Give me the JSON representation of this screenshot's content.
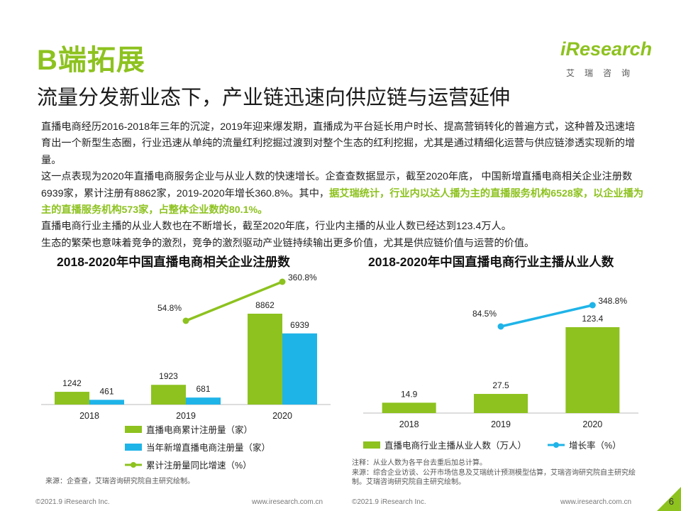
{
  "title": "B端拓展",
  "subtitle": "流量分发新业态下，产业链迅速向供应链与运营延伸",
  "logo": {
    "name": "iResearch",
    "sub": "艾瑞咨询"
  },
  "paragraphs": [
    {
      "text": "直播电商经历2016-2018年三年的沉淀，2019年迎来爆发期，直播成为平台延长用户时长、提高营销转化的普遍方式，这种普及迅速培育出一个新型生态圈，行业迅速从单纯的流量红利挖掘过渡到对整个生态的红利挖掘，尤其是通过精细化运营与供应链渗透实现新的增量。"
    },
    {
      "text": "这一点表现为2020年直播电商服务企业与从业人数的快速增长。企查查数据显示，截至2020年底， 中国新增直播电商相关企业注册数6939家，累计注册有8862家，2019-2020年增长360.8%。其中，",
      "highlight": "据艾瑞统计，行业内以达人播为主的直播服务机构6528家，以企业播为主的直播服务机构573家，占整体企业数的80.1%。"
    },
    {
      "text": "直播电商行业主播的从业人数也在不断增长，截至2020年底，行业内主播的从业人数已经达到123.4万人。"
    },
    {
      "text": "生态的繁荣也意味着竞争的激烈，竞争的激烈驱动产业链持续输出更多价值，尤其是供应链价值与运营的价值。"
    }
  ],
  "chart_data": [
    {
      "type": "bar",
      "title": "2018-2020年中国直播电商相关企业注册数",
      "categories": [
        "2018",
        "2019",
        "2020"
      ],
      "series": [
        {
          "name": "直播电商累计注册量（家）",
          "type": "bar",
          "color": "#8dc21f",
          "values": [
            1242,
            1923,
            8862
          ],
          "labels": [
            "1242",
            "1923",
            "8862"
          ]
        },
        {
          "name": "当年新增直播电商注册量（家）",
          "type": "bar",
          "color": "#1fb4e8",
          "values": [
            461,
            681,
            6939
          ],
          "labels": [
            "461",
            "681",
            "6939"
          ]
        },
        {
          "name": "累计注册量同比增速（%）",
          "type": "line",
          "color": "#8dc21f",
          "values": [
            null,
            54.8,
            360.8
          ],
          "labels": [
            "",
            "54.8%",
            "360.8%"
          ]
        }
      ],
      "source": "来源：企查查，艾瑞咨询研究院自主研究绘制。"
    },
    {
      "type": "bar",
      "title": "2018-2020年中国直播电商行业主播从业人数",
      "categories": [
        "2018",
        "2019",
        "2020"
      ],
      "series": [
        {
          "name": "直播电商行业主播从业人数（万人）",
          "type": "bar",
          "color": "#8dc21f",
          "values": [
            14.9,
            27.5,
            123.4
          ],
          "labels": [
            "14.9",
            "27.5",
            "123.4"
          ]
        },
        {
          "name": "增长率（%）",
          "type": "line",
          "color": "#1fb4e8",
          "values": [
            null,
            84.5,
            348.8
          ],
          "labels": [
            "",
            "84.5%",
            "348.8%"
          ]
        }
      ],
      "note": "注释：从业人数为各平台去重后加总计算。",
      "source": "来源：综合企业访谈、公开市场信息及艾瑞统计预测模型估算，艾瑞咨询研究院自主研究绘制。艾瑞咨询研究院自主研究绘制。"
    }
  ],
  "footer": {
    "left_copyright": "©2021.9 iResearch Inc.",
    "left_url": "www.iresearch.com.cn",
    "right_copyright": "©2021.9 iResearch Inc.",
    "right_url": "www.iresearch.com.cn",
    "page": "6"
  }
}
